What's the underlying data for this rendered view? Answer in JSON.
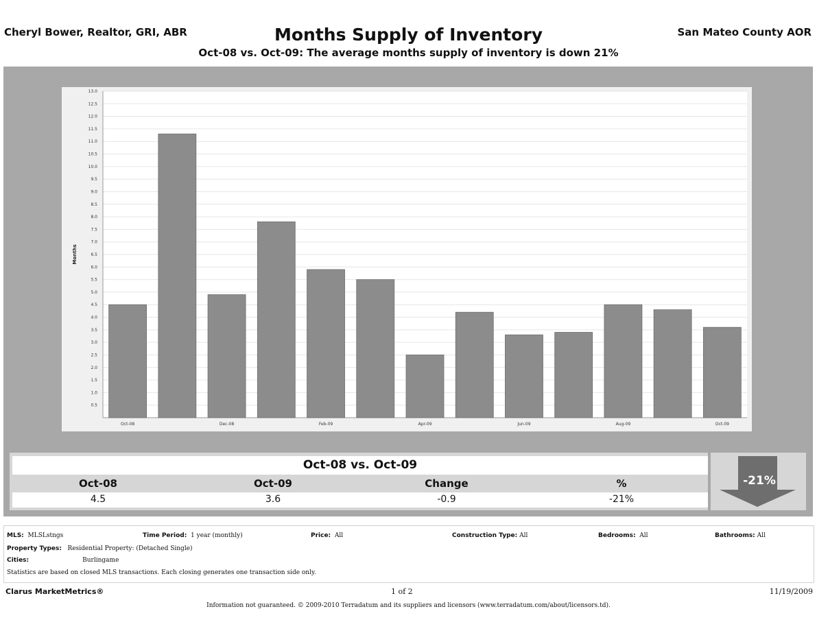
{
  "header": {
    "left": "Cheryl Bower, Realtor, GRI, ABR",
    "title": "Months Supply of Inventory",
    "right": "San Mateo County AOR",
    "subtitle": "Oct-08 vs. Oct-09:  The average months supply of inventory is down 21%"
  },
  "chart_data": {
    "type": "bar",
    "ylabel": "Months",
    "xlabel": "",
    "ylim": [
      0,
      13.0
    ],
    "yticks": [
      "0.5",
      "1.0",
      "1.5",
      "2.0",
      "2.5",
      "3.0",
      "3.5",
      "4.0",
      "4.5",
      "5.0",
      "5.5",
      "6.0",
      "6.5",
      "7.0",
      "7.5",
      "8.0",
      "8.5",
      "9.0",
      "9.5",
      "10.0",
      "10.5",
      "11.0",
      "11.5",
      "12.0",
      "12.5",
      "13.0"
    ],
    "categories": [
      "Oct-08",
      "Nov-08",
      "Dec-08",
      "Jan-09",
      "Feb-09",
      "Mar-09",
      "Apr-09",
      "May-09",
      "Jun-09",
      "Jul-09",
      "Aug-09",
      "Sep-09",
      "Oct-09"
    ],
    "xtick_labels": [
      "Oct-08",
      "",
      "Dec-08",
      "",
      "Feb-09",
      "",
      "Apr-09",
      "",
      "Jun-09",
      "",
      "Aug-09",
      "",
      "Oct-09"
    ],
    "values": [
      4.5,
      11.3,
      4.9,
      7.8,
      5.9,
      5.5,
      2.5,
      4.2,
      3.3,
      3.4,
      4.5,
      4.3,
      3.6
    ],
    "bar_color": "#8c8c8c",
    "grid": true
  },
  "summary": {
    "title": "Oct-08 vs. Oct-09",
    "columns": [
      "Oct-08",
      "Oct-09",
      "Change",
      "%"
    ],
    "values": [
      "4.5",
      "3.6",
      "-0.9",
      "-21%"
    ],
    "arrow_label": "-21%"
  },
  "info": {
    "mls_label": "MLS:",
    "mls_value": "MLSLstngs",
    "period_label": "Time Period:",
    "period_value": "1 year (monthly)",
    "price_label": "Price:",
    "price_value": "All",
    "construction_label": "Construction Type:",
    "construction_value": "All",
    "bedrooms_label": "Bedrooms:",
    "bedrooms_value": "All",
    "bathrooms_label": "Bathrooms:",
    "bathrooms_value": "All",
    "ptypes_label": "Property Types:",
    "ptypes_value": "Residential Property: (Detached Single)",
    "cities_label": "Cities:",
    "cities_value": "Burlingame",
    "note": "Statistics are based on closed MLS transactions.  Each closing generates one transaction side only."
  },
  "footer": {
    "brand": "Clarus MarketMetrics®",
    "page": "1 of 2",
    "date": "11/19/2009",
    "disclaimer": "Information not guaranteed.  © 2009-2010 Terradatum and its suppliers and licensors (www.terradatum.com/about/licensors.td)."
  }
}
